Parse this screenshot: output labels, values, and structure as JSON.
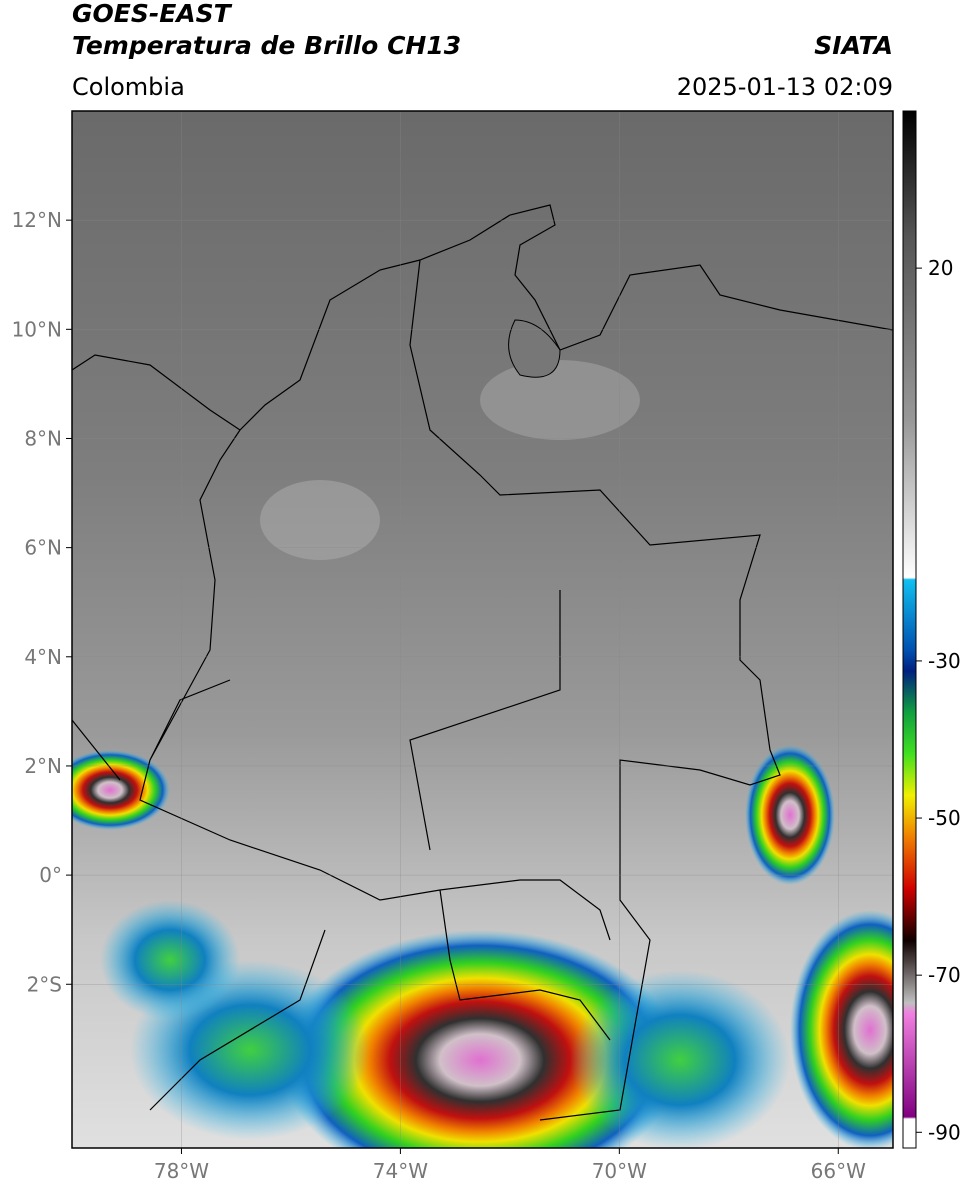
{
  "header": {
    "title_line1": "GOES-EAST",
    "title_line2": "Temperatura de Brillo CH13",
    "source": "SIATA",
    "region": "Colombia",
    "datetime": "2025-01-13 02:09"
  },
  "map": {
    "xlim": [
      -80,
      -65
    ],
    "ylim": [
      -5,
      14
    ],
    "xticks": [
      {
        "value": -78,
        "label": "78°W"
      },
      {
        "value": -74,
        "label": "74°W"
      },
      {
        "value": -70,
        "label": "70°W"
      },
      {
        "value": -66,
        "label": "66°W"
      }
    ],
    "yticks": [
      {
        "value": 12,
        "label": "12°N"
      },
      {
        "value": 10,
        "label": "10°N"
      },
      {
        "value": 8,
        "label": "8°N"
      },
      {
        "value": 6,
        "label": "6°N"
      },
      {
        "value": 4,
        "label": "4°N"
      },
      {
        "value": 2,
        "label": "2°N"
      },
      {
        "value": 0,
        "label": "0°"
      },
      {
        "value": -2,
        "label": "2°S"
      }
    ]
  },
  "colorbar": {
    "lim": [
      -92,
      40
    ],
    "ticks": [
      20,
      -30,
      -50,
      -70,
      -90
    ]
  }
}
